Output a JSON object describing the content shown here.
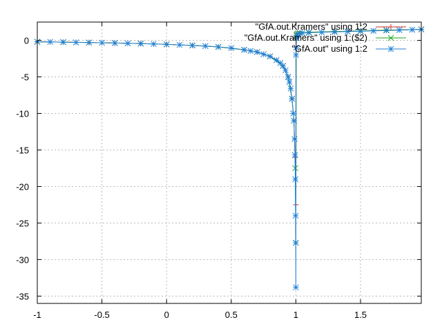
{
  "chart_data": {
    "type": "line",
    "title": "",
    "xlabel": "",
    "ylabel": "",
    "xlim": [
      -1,
      1.97
    ],
    "ylim": [
      -36,
      2.5
    ],
    "grid": true,
    "legend_position": "top-right",
    "xticks": [
      "-1",
      "-0.5",
      "0",
      "0.5",
      "1",
      "1.5"
    ],
    "xtick_values": [
      -1,
      -0.5,
      0,
      0.5,
      1,
      1.5
    ],
    "yticks": [
      "0",
      "-5",
      "-10",
      "-15",
      "-20",
      "-25",
      "-30",
      "-35"
    ],
    "ytick_values": [
      0,
      -5,
      -10,
      -15,
      -20,
      -25,
      -30,
      -35
    ],
    "series": [
      {
        "name": "\"GfA.out.Kramers\" using 1:2",
        "color": "#cc2b2b",
        "marker": "plus",
        "x": [
          -1,
          -0.8,
          -0.6,
          -0.4,
          -0.2,
          0,
          0.2,
          0.4,
          0.6,
          0.7,
          0.8,
          0.9,
          0.94,
          0.97,
          0.985,
          0.995,
          1.0,
          1.0,
          1.003,
          1.01,
          1.03,
          1.1,
          1.3,
          1.5,
          1.7,
          1.97
        ],
        "y": [
          -0.2,
          -0.25,
          -0.3,
          -0.37,
          -0.45,
          -0.55,
          -0.7,
          -0.9,
          -1.3,
          -1.6,
          -2.2,
          -3.5,
          -5.0,
          -8.0,
          -11.0,
          -16.0,
          -22.5,
          0.2,
          0.7,
          0.9,
          1.0,
          1.1,
          1.2,
          1.3,
          1.4,
          1.5
        ]
      },
      {
        "name": "\"GfA.out.Kramers\" using 1:($2)",
        "color": "#1aa31a",
        "marker": "x",
        "x": [
          -1,
          -0.8,
          -0.6,
          -0.4,
          -0.2,
          0,
          0.2,
          0.4,
          0.6,
          0.7,
          0.8,
          0.9,
          0.94,
          0.97,
          0.985,
          0.995,
          1.0,
          1.003,
          1.01,
          1.03,
          1.1,
          1.3,
          1.5,
          1.7,
          1.97
        ],
        "y": [
          -0.2,
          -0.25,
          -0.3,
          -0.37,
          -0.45,
          -0.55,
          -0.7,
          -0.9,
          -1.3,
          -1.6,
          -2.2,
          -3.5,
          -5.0,
          -8.0,
          -11.0,
          -17.5,
          -27.7,
          0.7,
          0.9,
          1.0,
          1.1,
          1.2,
          1.3,
          1.4,
          1.5
        ]
      },
      {
        "name": "\"GfA.out\" using 1:2",
        "color": "#1f7fd8",
        "marker": "star",
        "x": [
          -1,
          -0.9,
          -0.8,
          -0.7,
          -0.6,
          -0.5,
          -0.4,
          -0.3,
          -0.2,
          -0.1,
          0,
          0.1,
          0.2,
          0.3,
          0.4,
          0.5,
          0.6,
          0.65,
          0.7,
          0.75,
          0.8,
          0.85,
          0.88,
          0.9,
          0.92,
          0.94,
          0.95,
          0.96,
          0.97,
          0.98,
          0.985,
          0.99,
          0.993,
          0.996,
          0.998,
          0.999,
          1.0,
          1.001,
          1.003,
          1.006,
          1.01,
          1.02,
          1.05,
          1.1,
          1.2,
          1.3,
          1.4,
          1.5,
          1.6,
          1.7,
          1.8,
          1.9,
          1.97
        ],
        "y": [
          -0.2,
          -0.22,
          -0.25,
          -0.28,
          -0.3,
          -0.33,
          -0.37,
          -0.41,
          -0.45,
          -0.5,
          -0.55,
          -0.62,
          -0.7,
          -0.78,
          -0.9,
          -1.05,
          -1.3,
          -1.45,
          -1.6,
          -1.9,
          -2.2,
          -2.7,
          -3.1,
          -3.5,
          -4.1,
          -5.0,
          -5.7,
          -6.6,
          -8.0,
          -10.0,
          -11.0,
          -13.5,
          -15.7,
          -19.0,
          -24.0,
          -27.7,
          -33.8,
          -2.0,
          -1.0,
          0.3,
          0.7,
          0.9,
          1.0,
          1.05,
          1.1,
          1.15,
          1.2,
          1.25,
          1.3,
          1.35,
          1.4,
          1.45,
          1.5
        ]
      }
    ]
  }
}
